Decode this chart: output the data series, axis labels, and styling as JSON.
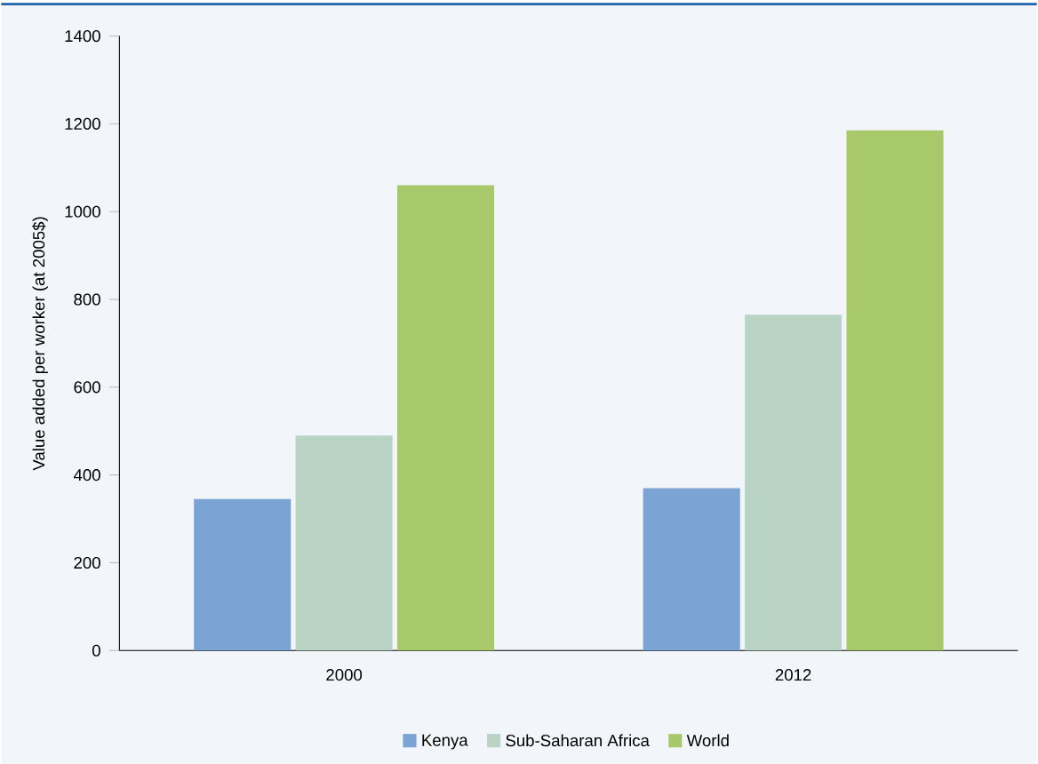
{
  "chart_data": {
    "type": "bar",
    "ylabel": "Value added per worker (at 2005$)",
    "categories": [
      "2000",
      "2012"
    ],
    "series": [
      {
        "name": "Kenya",
        "color": "#7ba3d4",
        "values": [
          345,
          370
        ]
      },
      {
        "name": "Sub-Saharan Africa",
        "color": "#b9d4c4",
        "values": [
          490,
          765
        ]
      },
      {
        "name": "World",
        "color": "#a8c96a",
        "values": [
          1060,
          1185
        ]
      }
    ],
    "ylim": [
      0,
      1400
    ],
    "yticks": [
      0,
      200,
      400,
      600,
      800,
      1000,
      1200,
      1400
    ],
    "grid": false,
    "legend": "bottom"
  }
}
